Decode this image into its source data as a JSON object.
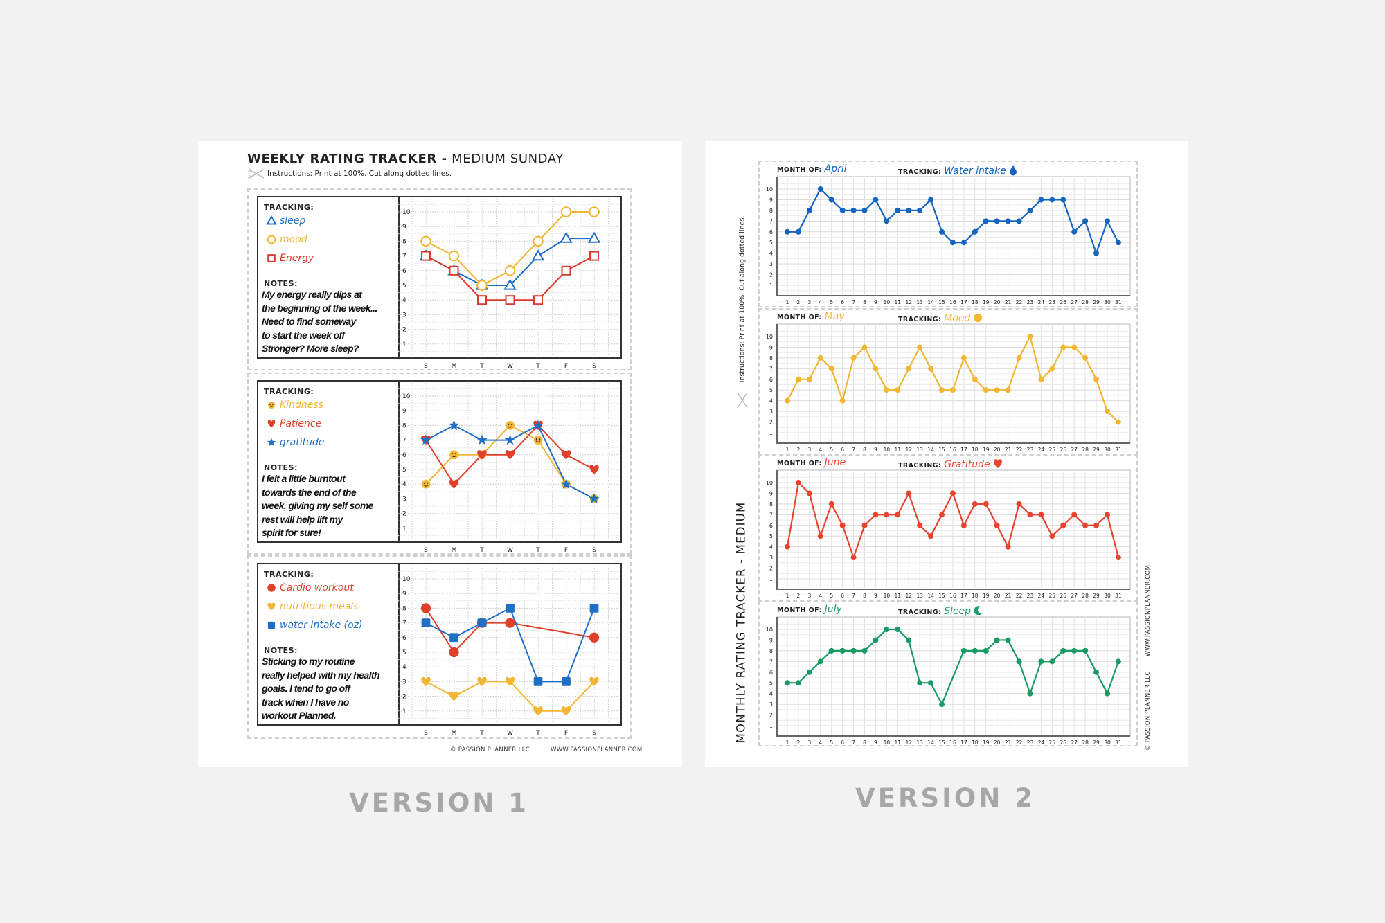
{
  "version1": {
    "title_bold": "WEEKLY RATING TRACKER -",
    "title_light": "MEDIUM SUNDAY",
    "instructions": "Instructions: Print at 100%. Cut along dotted lines.",
    "footer_copyright": "© PASSION PLANNER LLC",
    "footer_url": "WWW.PASSIONPLANNER.COM",
    "caption": "VERSION 1",
    "panels": [
      {
        "tracking_label": "TRACKING:",
        "notes_label": "NOTES:",
        "notes": [
          "My energy really dips at",
          "the beginning of the week...",
          "Need to find someway",
          "to start the week off",
          "Stronger? More sleep?"
        ]
      },
      {
        "tracking_label": "TRACKING:",
        "notes_label": "NOTES:",
        "notes": [
          "I felt a little burntout",
          "towards the end of the",
          "week, giving my self some",
          "rest will help lift my",
          "spirit for sure!"
        ]
      },
      {
        "tracking_label": "TRACKING:",
        "notes_label": "NOTES:",
        "notes": [
          "Sticking to my routine",
          "really helped with my health",
          "goals. I tend to go off",
          "track when I have no",
          "workout Planned."
        ]
      }
    ]
  },
  "version2": {
    "side_title": "MONTHLY RATING TRACKER - MEDIUM",
    "instructions": "Instructions: Print at 100%. Cut along dotted lines.",
    "footer_copyright": "© PASSION PLANNER LLC",
    "footer_url": "WWW.PASSIONPLANNER.COM",
    "caption": "VERSION 2"
  },
  "chart_data": [
    {
      "type": "line",
      "categories": [
        "S",
        "M",
        "T",
        "W",
        "T",
        "F",
        "S"
      ],
      "yticks": [
        1,
        2,
        3,
        4,
        5,
        6,
        7,
        8,
        9,
        10
      ],
      "ylim": [
        0,
        10
      ],
      "grid": true,
      "series": [
        {
          "name": "sleep",
          "marker": "triangle-outline",
          "color": "#1f6fc5",
          "values": [
            7,
            6,
            5,
            5,
            7,
            8.2,
            8.2
          ]
        },
        {
          "name": "mood",
          "marker": "circle-outline",
          "color": "#f2b632",
          "values": [
            8,
            7,
            5,
            6,
            8,
            10,
            10
          ]
        },
        {
          "name": "Energy",
          "marker": "square-outline",
          "color": "#d93a2b",
          "values": [
            7,
            6,
            4,
            4,
            4,
            6,
            7
          ]
        }
      ]
    },
    {
      "type": "line",
      "categories": [
        "S",
        "M",
        "T",
        "W",
        "T",
        "F",
        "S"
      ],
      "yticks": [
        1,
        2,
        3,
        4,
        5,
        6,
        7,
        8,
        9,
        10
      ],
      "ylim": [
        0,
        10
      ],
      "grid": true,
      "series": [
        {
          "name": "Kindness",
          "marker": "smiley",
          "color": "#f2b632",
          "values": [
            4,
            6,
            6,
            8,
            7,
            4,
            3
          ]
        },
        {
          "name": "Patience",
          "marker": "heart",
          "color": "#e0402a",
          "values": [
            7,
            4,
            6,
            6,
            8,
            6,
            5
          ]
        },
        {
          "name": "gratitude",
          "marker": "star",
          "color": "#1f6fc5",
          "values": [
            7,
            8,
            7,
            7,
            8,
            4,
            3
          ]
        }
      ]
    },
    {
      "type": "line",
      "categories": [
        "S",
        "M",
        "T",
        "W",
        "T",
        "F",
        "S"
      ],
      "yticks": [
        1,
        2,
        3,
        4,
        5,
        6,
        7,
        8,
        9,
        10
      ],
      "ylim": [
        0,
        10
      ],
      "grid": true,
      "series": [
        {
          "name": "Cardio workout",
          "marker": "dot",
          "color": "#e0402a",
          "values": [
            8,
            5,
            7,
            7,
            null,
            null,
            6
          ]
        },
        {
          "name": "nutritious meals",
          "marker": "heart",
          "color": "#f2b632",
          "values": [
            3,
            2,
            3,
            3,
            1,
            1,
            3
          ]
        },
        {
          "name": "water Intake (oz)",
          "marker": "square",
          "color": "#1f6fc5",
          "values": [
            7,
            6,
            7,
            8,
            3,
            3,
            8
          ]
        }
      ]
    },
    {
      "type": "line",
      "month_label": "MONTH OF:",
      "month": "April",
      "tracking_label": "TRACKING:",
      "tracking": "Water intake",
      "tracking_icon": "drop-icon",
      "color": "#1565c0",
      "categories": [
        1,
        2,
        3,
        4,
        5,
        6,
        7,
        8,
        9,
        10,
        11,
        12,
        13,
        14,
        15,
        16,
        17,
        18,
        19,
        20,
        21,
        22,
        23,
        24,
        25,
        26,
        27,
        28,
        29,
        30,
        31
      ],
      "yticks": [
        1,
        2,
        3,
        4,
        5,
        6,
        7,
        8,
        9,
        10
      ],
      "ylim": [
        0,
        10
      ],
      "grid": true,
      "values": [
        6,
        6,
        8,
        10,
        9,
        8,
        8,
        8,
        9,
        7,
        8,
        8,
        8,
        9,
        6,
        5,
        5,
        6,
        7,
        7,
        7,
        7,
        8,
        9,
        9,
        9,
        6,
        7,
        4,
        7,
        5
      ]
    },
    {
      "type": "line",
      "month_label": "MONTH OF:",
      "month": "May",
      "tracking_label": "TRACKING:",
      "tracking": "Mood",
      "tracking_icon": "dot-icon",
      "color": "#f2b632",
      "categories": [
        1,
        2,
        3,
        4,
        5,
        6,
        7,
        8,
        9,
        10,
        11,
        12,
        13,
        14,
        15,
        16,
        17,
        18,
        19,
        20,
        21,
        22,
        23,
        24,
        25,
        26,
        27,
        28,
        29,
        30,
        31
      ],
      "yticks": [
        1,
        2,
        3,
        4,
        5,
        6,
        7,
        8,
        9,
        10
      ],
      "ylim": [
        0,
        10
      ],
      "grid": true,
      "values": [
        4,
        6,
        6,
        8,
        7,
        4,
        8,
        9,
        7,
        5,
        5,
        7,
        9,
        7,
        5,
        5,
        8,
        6,
        5,
        5,
        5,
        8,
        10,
        6,
        7,
        9,
        9,
        8,
        6,
        3,
        2
      ]
    },
    {
      "type": "line",
      "month_label": "MONTH OF:",
      "month": "June",
      "tracking_label": "TRACKING:",
      "tracking": "Gratitude",
      "tracking_icon": "heart-icon",
      "color": "#e8432e",
      "categories": [
        1,
        2,
        3,
        4,
        5,
        6,
        7,
        8,
        9,
        10,
        11,
        12,
        13,
        14,
        15,
        16,
        17,
        18,
        19,
        20,
        21,
        22,
        23,
        24,
        25,
        26,
        27,
        28,
        29,
        30,
        31
      ],
      "yticks": [
        1,
        2,
        3,
        4,
        5,
        6,
        7,
        8,
        9,
        10
      ],
      "ylim": [
        0,
        10
      ],
      "grid": true,
      "values": [
        4,
        10,
        9,
        5,
        8,
        6,
        3,
        6,
        7,
        7,
        7,
        9,
        6,
        5,
        7,
        9,
        6,
        8,
        8,
        6,
        4,
        8,
        7,
        7,
        5,
        6,
        7,
        6,
        6,
        7,
        3
      ]
    },
    {
      "type": "line",
      "month_label": "MONTH OF:",
      "month": "July",
      "tracking_label": "TRACKING:",
      "tracking": "Sleep",
      "tracking_icon": "moon-icon",
      "color": "#1a9a64",
      "categories": [
        1,
        2,
        3,
        4,
        5,
        6,
        7,
        8,
        9,
        10,
        11,
        12,
        13,
        14,
        15,
        16,
        17,
        18,
        19,
        20,
        21,
        22,
        23,
        24,
        25,
        26,
        27,
        28,
        29,
        30,
        31
      ],
      "yticks": [
        1,
        2,
        3,
        4,
        5,
        6,
        7,
        8,
        9,
        10
      ],
      "ylim": [
        0,
        10
      ],
      "grid": true,
      "values": [
        5,
        5,
        6,
        7,
        8,
        8,
        8,
        8,
        9,
        10,
        10,
        9,
        5,
        5,
        3,
        null,
        8,
        8,
        8,
        9,
        9,
        7,
        4,
        7,
        7,
        8,
        8,
        8,
        6,
        4,
        7
      ]
    }
  ]
}
